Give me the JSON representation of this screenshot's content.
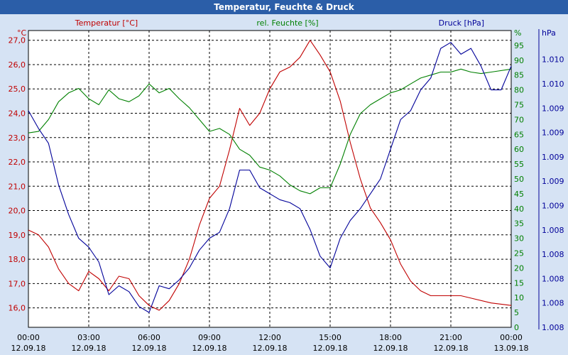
{
  "window": {
    "title": "Temperatur, Feuchte & Druck"
  },
  "colors": {
    "background": "#d6e3f4",
    "titlebar": "#2b5ea8",
    "plot_bg": "#ffffff",
    "temperature": "#c00000",
    "humidity": "#008000",
    "pressure": "#000099"
  },
  "chart_data": {
    "type": "line",
    "title": "Temperatur, Feuchte & Druck",
    "grid": true,
    "x_ticks": [
      {
        "time": "00:00",
        "date": "12.09.18"
      },
      {
        "time": "03:00",
        "date": "12.09.18"
      },
      {
        "time": "06:00",
        "date": "12.09.18"
      },
      {
        "time": "09:00",
        "date": "12.09.18"
      },
      {
        "time": "12:00",
        "date": "12.09.18"
      },
      {
        "time": "15:00",
        "date": "12.09.18"
      },
      {
        "time": "18:00",
        "date": "12.09.18"
      },
      {
        "time": "21:00",
        "date": "12.09.18"
      },
      {
        "time": "00:00",
        "date": "13.09.18"
      }
    ],
    "xlim": [
      0,
      24
    ],
    "axes": {
      "temperature": {
        "unit": "°C",
        "label": "Temperatur [°C]",
        "ylim": [
          15.2,
          27.4
        ],
        "ticks": [
          "16,0",
          "17,0",
          "18,0",
          "19,0",
          "20,0",
          "21,0",
          "22,0",
          "23,0",
          "24,0",
          "25,0",
          "26,0",
          "27,0"
        ]
      },
      "humidity": {
        "unit": "%",
        "label": "rel. Feuchte [%]",
        "ylim": [
          0,
          100
        ],
        "ticks": [
          "0",
          "5",
          "10",
          "15",
          "20",
          "25",
          "30",
          "35",
          "40",
          "45",
          "50",
          "55",
          "60",
          "65",
          "70",
          "75",
          "80",
          "85",
          "90",
          "95"
        ]
      },
      "pressure": {
        "unit": "hPa",
        "label": "Druck [hPa]",
        "ticks": [
          "1.008",
          "1.008",
          "1.008",
          "1.008",
          "1.008",
          "1.009",
          "1.009",
          "1.009",
          "1.009",
          "1.009",
          "1.010",
          "1.010"
        ]
      }
    },
    "series": [
      {
        "name": "Temperatur [°C]",
        "axis": "temperature",
        "points": [
          [
            0,
            19.2
          ],
          [
            0.5,
            19.0
          ],
          [
            1,
            18.5
          ],
          [
            1.5,
            17.6
          ],
          [
            2,
            17.0
          ],
          [
            2.5,
            16.7
          ],
          [
            3,
            17.5
          ],
          [
            3.5,
            17.2
          ],
          [
            4,
            16.7
          ],
          [
            4.5,
            17.3
          ],
          [
            5,
            17.2
          ],
          [
            5.5,
            16.5
          ],
          [
            6,
            16.1
          ],
          [
            6.5,
            15.9
          ],
          [
            7,
            16.3
          ],
          [
            7.5,
            17.0
          ],
          [
            8,
            18.0
          ],
          [
            8.5,
            19.4
          ],
          [
            9,
            20.5
          ],
          [
            9.5,
            21.0
          ],
          [
            10,
            22.5
          ],
          [
            10.5,
            24.2
          ],
          [
            11,
            23.5
          ],
          [
            11.5,
            24.0
          ],
          [
            12,
            25.0
          ],
          [
            12.5,
            25.7
          ],
          [
            13,
            25.9
          ],
          [
            13.5,
            26.3
          ],
          [
            14,
            27.0
          ],
          [
            14.5,
            26.4
          ],
          [
            15,
            25.7
          ],
          [
            15.5,
            24.5
          ],
          [
            16,
            22.8
          ],
          [
            16.5,
            21.3
          ],
          [
            17,
            20.1
          ],
          [
            17.5,
            19.5
          ],
          [
            18,
            18.8
          ],
          [
            18.5,
            17.8
          ],
          [
            19,
            17.1
          ],
          [
            19.5,
            16.7
          ],
          [
            20,
            16.5
          ],
          [
            21,
            16.5
          ],
          [
            21.5,
            16.5
          ],
          [
            22,
            16.4
          ],
          [
            23,
            16.2
          ],
          [
            24,
            16.1
          ]
        ]
      },
      {
        "name": "rel. Feuchte [%]",
        "axis": "humidity",
        "points": [
          [
            0,
            65.5
          ],
          [
            0.5,
            66
          ],
          [
            1,
            70
          ],
          [
            1.5,
            76
          ],
          [
            2,
            79
          ],
          [
            2.5,
            80.5
          ],
          [
            3,
            77
          ],
          [
            3.5,
            75
          ],
          [
            4,
            80
          ],
          [
            4.5,
            77
          ],
          [
            5,
            76
          ],
          [
            5.5,
            78
          ],
          [
            6,
            82
          ],
          [
            6.5,
            79
          ],
          [
            7,
            80.5
          ],
          [
            7.5,
            77
          ],
          [
            8,
            74
          ],
          [
            8.5,
            70
          ],
          [
            9,
            66
          ],
          [
            9.5,
            67
          ],
          [
            10,
            65
          ],
          [
            10.5,
            60
          ],
          [
            11,
            58
          ],
          [
            11.5,
            54
          ],
          [
            12,
            53
          ],
          [
            12.5,
            51
          ],
          [
            13,
            48
          ],
          [
            13.5,
            46
          ],
          [
            14,
            45
          ],
          [
            14.5,
            47
          ],
          [
            15,
            47
          ],
          [
            15.5,
            55
          ],
          [
            16,
            65
          ],
          [
            16.5,
            72
          ],
          [
            17,
            75
          ],
          [
            17.5,
            77
          ],
          [
            18,
            79
          ],
          [
            18.5,
            80
          ],
          [
            19,
            82
          ],
          [
            19.5,
            84
          ],
          [
            20,
            85
          ],
          [
            20.5,
            86
          ],
          [
            21,
            86
          ],
          [
            21.5,
            87
          ],
          [
            22,
            86
          ],
          [
            22.5,
            85.5
          ],
          [
            23,
            86
          ],
          [
            24,
            87
          ]
        ]
      },
      {
        "name": "Druck [hPa]",
        "axis": "pressure",
        "points": [
          [
            0,
            0.73
          ],
          [
            0.5,
            0.67
          ],
          [
            1,
            0.62
          ],
          [
            1.5,
            0.48
          ],
          [
            2,
            0.38
          ],
          [
            2.5,
            0.3
          ],
          [
            3,
            0.27
          ],
          [
            3.5,
            0.22
          ],
          [
            4,
            0.11
          ],
          [
            4.5,
            0.14
          ],
          [
            5,
            0.12
          ],
          [
            5.5,
            0.07
          ],
          [
            6,
            0.05
          ],
          [
            6.5,
            0.14
          ],
          [
            7,
            0.13
          ],
          [
            7.5,
            0.16
          ],
          [
            8,
            0.2
          ],
          [
            8.5,
            0.26
          ],
          [
            9,
            0.3
          ],
          [
            9.5,
            0.32
          ],
          [
            10,
            0.4
          ],
          [
            10.5,
            0.53
          ],
          [
            11,
            0.53
          ],
          [
            11.5,
            0.47
          ],
          [
            12,
            0.45
          ],
          [
            12.5,
            0.43
          ],
          [
            13,
            0.42
          ],
          [
            13.5,
            0.4
          ],
          [
            14,
            0.33
          ],
          [
            14.5,
            0.24
          ],
          [
            15,
            0.2
          ],
          [
            15.5,
            0.3
          ],
          [
            16,
            0.36
          ],
          [
            16.5,
            0.4
          ],
          [
            17,
            0.45
          ],
          [
            17.5,
            0.5
          ],
          [
            18,
            0.6
          ],
          [
            18.5,
            0.7
          ],
          [
            19,
            0.73
          ],
          [
            19.5,
            0.8
          ],
          [
            20,
            0.84
          ],
          [
            20.5,
            0.94
          ],
          [
            21,
            0.96
          ],
          [
            21.5,
            0.92
          ],
          [
            22,
            0.94
          ],
          [
            22.5,
            0.88
          ],
          [
            23,
            0.8
          ],
          [
            23.5,
            0.8
          ],
          [
            24,
            0.88
          ]
        ]
      }
    ]
  }
}
